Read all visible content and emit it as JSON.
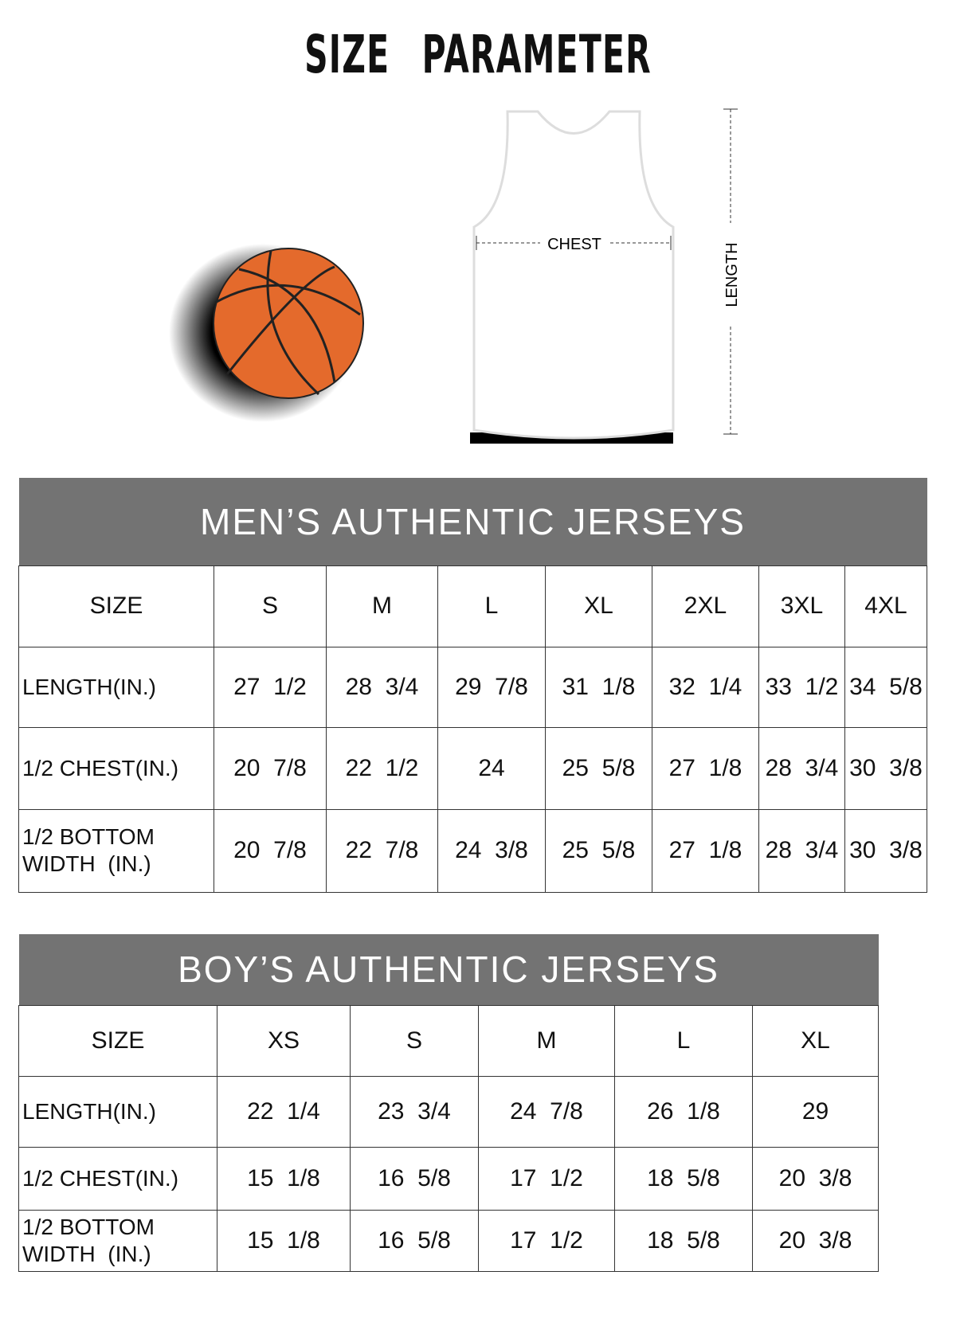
{
  "title": "SIZE PARAMETER",
  "diagram": {
    "chest_label": "CHEST",
    "length_label": "LENGTH",
    "ball_color": "#e46a2c",
    "jersey_color": "#ffffff"
  },
  "men": {
    "title": "MEN’S AUTHENTIC JERSEYS",
    "header_color": "#737373",
    "columns": [
      "SIZE",
      "S",
      "M",
      "L",
      "XL",
      "2XL",
      "3XL",
      "4XL"
    ],
    "rows": [
      {
        "label": "LENGTH(IN.)",
        "values": [
          "27  1/2",
          "28  3/4",
          "29  7/8",
          "31  1/8",
          "32  1/4",
          "33  1/2",
          "34  5/8"
        ]
      },
      {
        "label": "1/2 CHEST(IN.)",
        "values": [
          "20  7/8",
          "22  1/2",
          "24",
          "25  5/8",
          "27  1/8",
          "28  3/4",
          "30  3/8"
        ]
      },
      {
        "label": "1/2 BOTTOM WIDTH  (IN.)",
        "values": [
          "20  7/8",
          "22  7/8",
          "24  3/8",
          "25  5/8",
          "27  1/8",
          "28  3/4",
          "30  3/8"
        ]
      }
    ]
  },
  "boys": {
    "title": "BOY’S AUTHENTIC JERSEYS",
    "header_color": "#737373",
    "columns": [
      "SIZE",
      "XS",
      "S",
      "M",
      "L",
      "XL"
    ],
    "rows": [
      {
        "label": "LENGTH(IN.)",
        "values": [
          "22  1/4",
          "23  3/4",
          "24  7/8",
          "26  1/8",
          "29"
        ]
      },
      {
        "label": "1/2 CHEST(IN.)",
        "values": [
          "15  1/8",
          "16  5/8",
          "17  1/2",
          "18  5/8",
          "20  3/8"
        ]
      },
      {
        "label": "1/2 BOTTOM WIDTH  (IN.)",
        "values": [
          "15  1/8",
          "16  5/8",
          "17  1/2",
          "18  5/8",
          "20  3/8"
        ]
      }
    ]
  }
}
